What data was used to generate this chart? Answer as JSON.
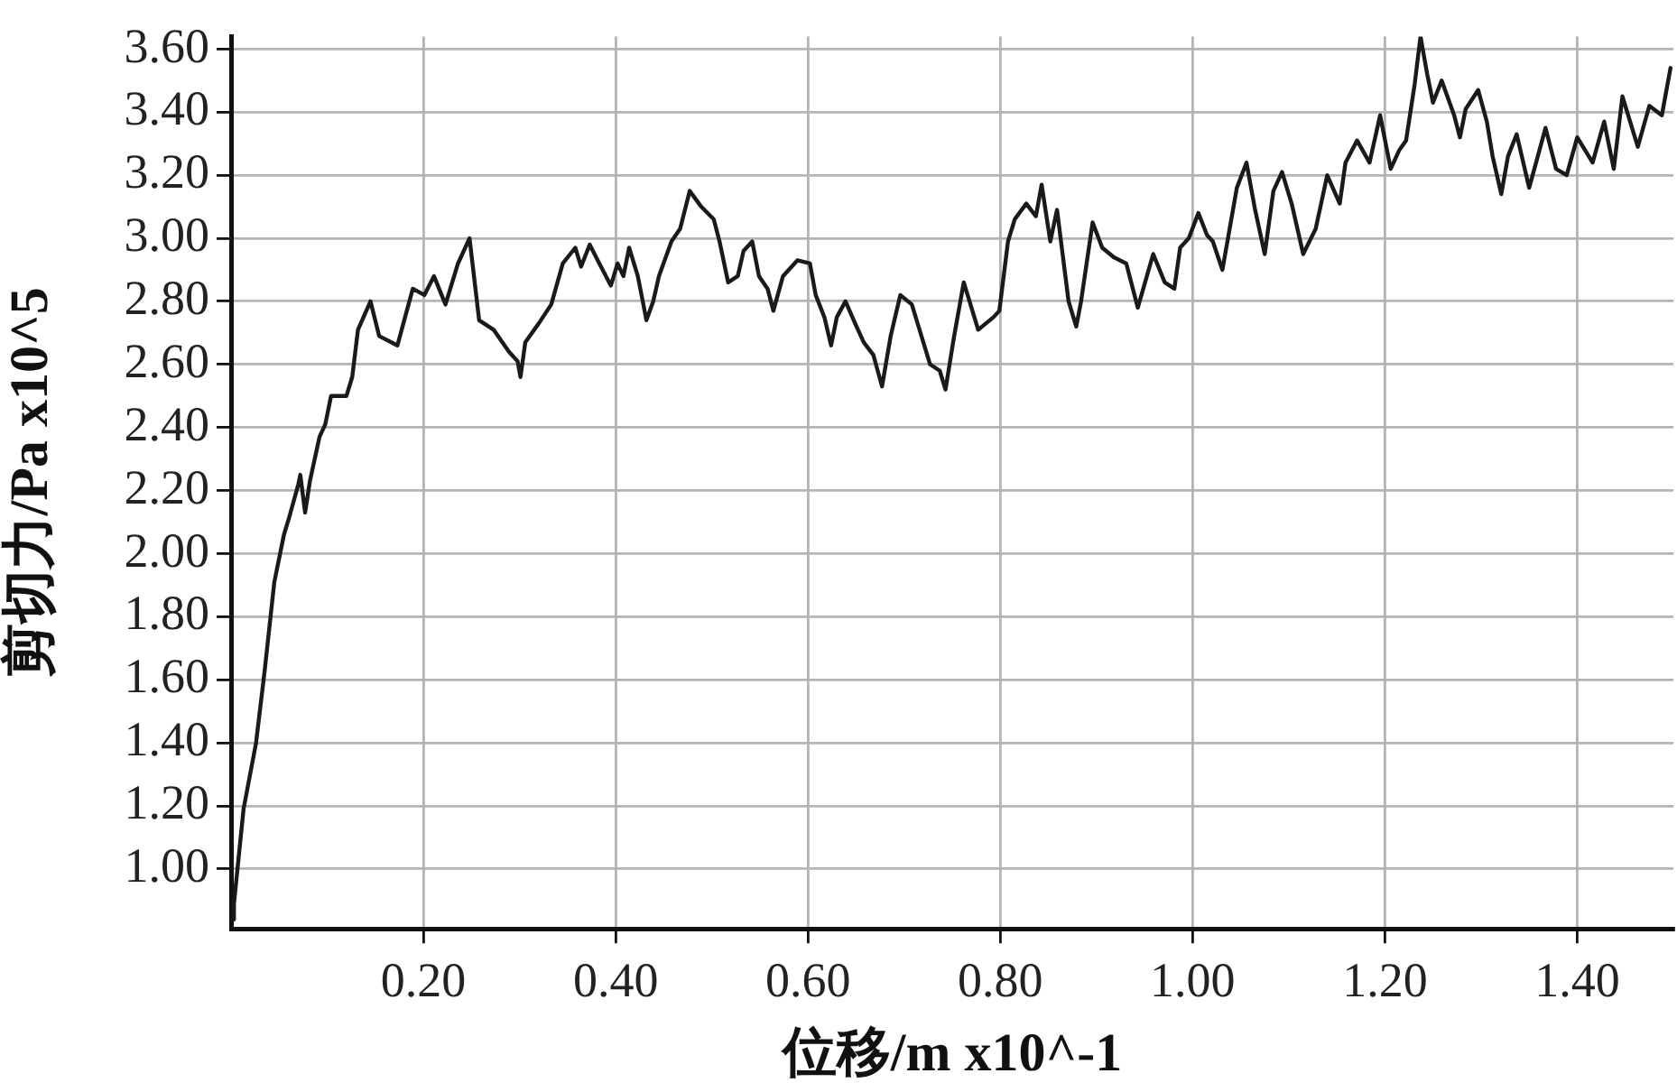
{
  "chart_data": {
    "type": "line",
    "xlabel": "位移/m x10^-1",
    "ylabel": "剪切力/Pa x10^5",
    "xlim": [
      0,
      1.5
    ],
    "ylim": [
      0.81,
      3.64
    ],
    "xticks": [
      {
        "value": 0.2,
        "label": "0.20"
      },
      {
        "value": 0.4,
        "label": "0.40"
      },
      {
        "value": 0.6,
        "label": "0.60"
      },
      {
        "value": 0.8,
        "label": "0.80"
      },
      {
        "value": 1.0,
        "label": "1.00"
      },
      {
        "value": 1.2,
        "label": "1.20"
      },
      {
        "value": 1.4,
        "label": "1.40"
      }
    ],
    "yticks": [
      {
        "value": 1.0,
        "label": "1.00"
      },
      {
        "value": 1.2,
        "label": "1.20"
      },
      {
        "value": 1.4,
        "label": "1.40"
      },
      {
        "value": 1.6,
        "label": "1.60"
      },
      {
        "value": 1.8,
        "label": "1.80"
      },
      {
        "value": 2.0,
        "label": "2.00"
      },
      {
        "value": 2.2,
        "label": "2.20"
      },
      {
        "value": 2.4,
        "label": "2.40"
      },
      {
        "value": 2.6,
        "label": "2.60"
      },
      {
        "value": 2.8,
        "label": "2.80"
      },
      {
        "value": 3.0,
        "label": "3.00"
      },
      {
        "value": 3.2,
        "label": "3.20"
      },
      {
        "value": 3.4,
        "label": "3.40"
      },
      {
        "value": 3.6,
        "label": "3.60"
      }
    ],
    "grid": true,
    "legend": false,
    "marker": "none",
    "line_style": "solid",
    "series": [
      {
        "color": "#1a1a1a",
        "x": [
          0.002,
          0.003,
          0.013,
          0.026,
          0.035,
          0.045,
          0.055,
          0.06,
          0.07,
          0.072,
          0.077,
          0.082,
          0.092,
          0.098,
          0.104,
          0.12,
          0.126,
          0.132,
          0.145,
          0.154,
          0.173,
          0.189,
          0.201,
          0.211,
          0.223,
          0.236,
          0.248,
          0.258,
          0.273,
          0.289,
          0.298,
          0.301,
          0.306,
          0.32,
          0.333,
          0.345,
          0.358,
          0.364,
          0.373,
          0.383,
          0.395,
          0.402,
          0.408,
          0.414,
          0.423,
          0.432,
          0.439,
          0.445,
          0.458,
          0.467,
          0.477,
          0.489,
          0.502,
          0.508,
          0.517,
          0.527,
          0.533,
          0.542,
          0.549,
          0.558,
          0.564,
          0.574,
          0.589,
          0.602,
          0.608,
          0.617,
          0.624,
          0.63,
          0.639,
          0.649,
          0.658,
          0.668,
          0.677,
          0.686,
          0.696,
          0.708,
          0.718,
          0.727,
          0.737,
          0.743,
          0.752,
          0.762,
          0.777,
          0.793,
          0.799,
          0.808,
          0.815,
          0.827,
          0.837,
          0.843,
          0.852,
          0.859,
          0.871,
          0.879,
          0.884,
          0.896,
          0.906,
          0.918,
          0.931,
          0.943,
          0.959,
          0.971,
          0.981,
          0.987,
          0.996,
          1.006,
          1.015,
          1.021,
          1.031,
          1.046,
          1.056,
          1.065,
          1.075,
          1.084,
          1.093,
          1.103,
          1.115,
          1.128,
          1.14,
          1.153,
          1.159,
          1.171,
          1.184,
          1.195,
          1.206,
          1.215,
          1.222,
          1.231,
          1.237,
          1.244,
          1.25,
          1.259,
          1.272,
          1.278,
          1.284,
          1.297,
          1.306,
          1.312,
          1.321,
          1.328,
          1.337,
          1.35,
          1.359,
          1.367,
          1.378,
          1.389,
          1.4,
          1.416,
          1.428,
          1.438,
          1.447,
          1.463,
          1.475,
          1.488,
          1.497
        ],
        "values": [
          0.84,
          0.89,
          1.19,
          1.4,
          1.63,
          1.91,
          2.06,
          2.11,
          2.22,
          2.25,
          2.13,
          2.23,
          2.37,
          2.41,
          2.5,
          2.5,
          2.56,
          2.71,
          2.8,
          2.69,
          2.66,
          2.84,
          2.82,
          2.88,
          2.79,
          2.92,
          3.0,
          2.74,
          2.71,
          2.64,
          2.61,
          2.56,
          2.67,
          2.73,
          2.79,
          2.92,
          2.97,
          2.91,
          2.98,
          2.92,
          2.85,
          2.92,
          2.88,
          2.97,
          2.88,
          2.74,
          2.8,
          2.88,
          2.99,
          3.03,
          3.15,
          3.1,
          3.06,
          2.99,
          2.86,
          2.88,
          2.96,
          2.99,
          2.88,
          2.84,
          2.77,
          2.88,
          2.93,
          2.92,
          2.82,
          2.75,
          2.66,
          2.75,
          2.8,
          2.73,
          2.67,
          2.63,
          2.53,
          2.69,
          2.82,
          2.79,
          2.69,
          2.6,
          2.58,
          2.52,
          2.69,
          2.86,
          2.71,
          2.75,
          2.77,
          2.99,
          3.06,
          3.11,
          3.07,
          3.17,
          2.99,
          3.09,
          2.8,
          2.72,
          2.8,
          3.05,
          2.97,
          2.94,
          2.92,
          2.78,
          2.95,
          2.86,
          2.84,
          2.97,
          3.0,
          3.08,
          3.01,
          2.99,
          2.9,
          3.16,
          3.24,
          3.09,
          2.95,
          3.15,
          3.21,
          3.11,
          2.95,
          3.03,
          3.2,
          3.11,
          3.24,
          3.31,
          3.24,
          3.39,
          3.22,
          3.28,
          3.31,
          3.49,
          3.64,
          3.52,
          3.43,
          3.5,
          3.39,
          3.32,
          3.41,
          3.47,
          3.37,
          3.26,
          3.14,
          3.26,
          3.33,
          3.16,
          3.26,
          3.35,
          3.22,
          3.2,
          3.32,
          3.24,
          3.37,
          3.22,
          3.45,
          3.29,
          3.42,
          3.39,
          3.54
        ]
      }
    ]
  }
}
